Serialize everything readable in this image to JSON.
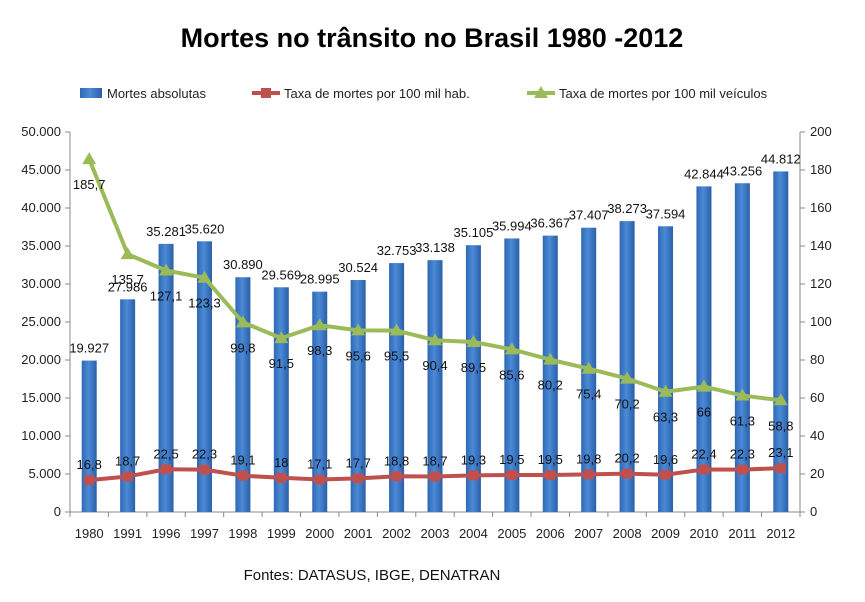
{
  "chart_data": {
    "type": "bar",
    "title": "Mortes no trânsito no Brasil 1980 -2012",
    "categories": [
      "1980",
      "1991",
      "1996",
      "1997",
      "1998",
      "1999",
      "2000",
      "2001",
      "2002",
      "2003",
      "2004",
      "2005",
      "2006",
      "2007",
      "2008",
      "2009",
      "2010",
      "2011",
      "2012"
    ],
    "series": [
      {
        "name": "Mortes absolutas",
        "kind": "bar",
        "axis": "left",
        "color": "#3d7cc9",
        "values": [
          19927,
          27986,
          35281,
          35620,
          30890,
          29569,
          28995,
          30524,
          32753,
          33138,
          35105,
          35994,
          36367,
          37407,
          38273,
          37594,
          42844,
          43256,
          44812
        ],
        "labels": [
          "19.927",
          "27.986",
          "35.281",
          "35.620",
          "30.890",
          "29.569",
          "28.995",
          "30.524",
          "32.753",
          "33.138",
          "35.105",
          "35.994",
          "36.367",
          "37.407",
          "38.273",
          "37.594",
          "42.844",
          "43.256",
          "44.812"
        ]
      },
      {
        "name": "Taxa de mortes por 100 mil hab.",
        "kind": "line",
        "axis": "right",
        "color": "#c0504d",
        "values": [
          16.8,
          18.7,
          22.5,
          22.3,
          19.1,
          18,
          17.1,
          17.7,
          18.8,
          18.7,
          19.3,
          19.5,
          19.5,
          19.8,
          20.2,
          19.6,
          22.4,
          22.3,
          23.1
        ],
        "labels": [
          "16,8",
          "18,7",
          "22,5",
          "22,3",
          "19,1",
          "18",
          "17,1",
          "17,7",
          "18,8",
          "18,7",
          "19,3",
          "19,5",
          "19,5",
          "19,8",
          "20,2",
          "19,6",
          "22,4",
          "22,3",
          "23,1"
        ]
      },
      {
        "name": "Taxa de mortes por 100 mil veículos",
        "kind": "line",
        "axis": "right",
        "color": "#9bbb59",
        "values": [
          185.7,
          135.7,
          127.1,
          123.3,
          99.8,
          91.5,
          98.3,
          95.6,
          95.5,
          90.4,
          89.5,
          85.6,
          80.2,
          75.4,
          70.2,
          63.3,
          66,
          61.3,
          58.8
        ],
        "labels": [
          "185,7",
          "135,7",
          "127,1",
          "123,3",
          "99,8",
          "91,5",
          "98,3",
          "95,6",
          "95,5",
          "90,4",
          "89,5",
          "85,6",
          "80,2",
          "75,4",
          "70,2",
          "63,3",
          "66",
          "61,3",
          "58,8"
        ]
      }
    ],
    "left_axis": {
      "ylim": [
        0,
        50000
      ],
      "ticks": [
        0,
        5000,
        10000,
        15000,
        20000,
        25000,
        30000,
        35000,
        40000,
        45000,
        50000
      ],
      "tick_labels": [
        "0",
        "5.000",
        "10.000",
        "15.000",
        "20.000",
        "25.000",
        "30.000",
        "35.000",
        "40.000",
        "45.000",
        "50.000"
      ]
    },
    "right_axis": {
      "ylim": [
        0,
        200
      ],
      "ticks": [
        0,
        20,
        40,
        60,
        80,
        100,
        120,
        140,
        160,
        180,
        200
      ],
      "tick_labels": [
        "0",
        "20",
        "40",
        "60",
        "80",
        "100",
        "120",
        "140",
        "160",
        "180",
        "200"
      ]
    },
    "legend_position": "top",
    "grid": false,
    "source": "Fontes: DATASUS, IBGE, DENATRAN"
  }
}
